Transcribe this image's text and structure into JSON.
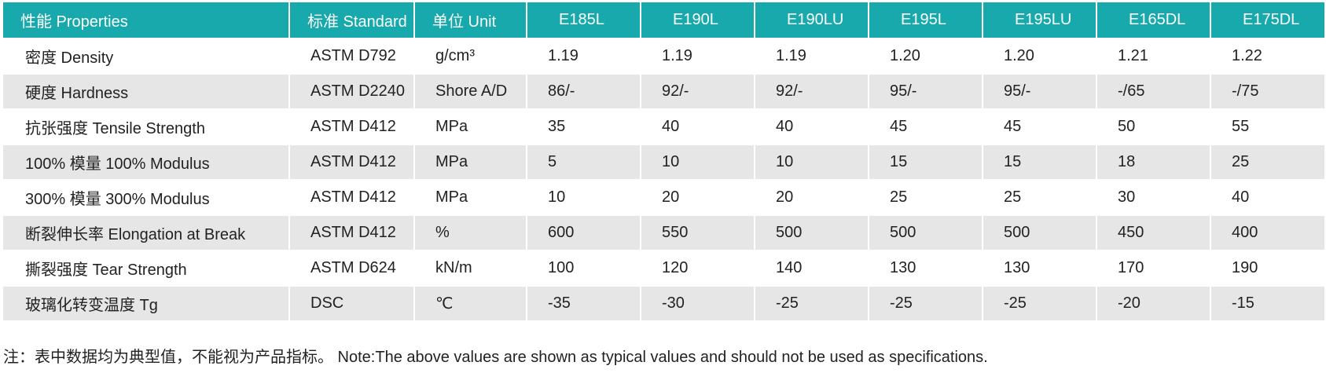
{
  "table": {
    "header": [
      "性能 Properties",
      "标准 Standard",
      "单位 Unit",
      "E185L",
      "E190L",
      "E190LU",
      "E195L",
      "E195LU",
      "E165DL",
      "E175DL"
    ],
    "rows": [
      [
        "密度 Density",
        "ASTM D792",
        "g/cm³",
        "1.19",
        "1.19",
        "1.19",
        "1.20",
        "1.20",
        "1.21",
        "1.22"
      ],
      [
        "硬度 Hardness",
        "ASTM D2240",
        "Shore A/D",
        "86/-",
        "92/-",
        "92/-",
        "95/-",
        "95/-",
        "-/65",
        "-/75"
      ],
      [
        "抗张强度 Tensile Strength",
        "ASTM D412",
        "MPa",
        "35",
        "40",
        "40",
        "45",
        "45",
        "50",
        "55"
      ],
      [
        "100% 模量 100% Modulus",
        "ASTM D412",
        "MPa",
        "5",
        "10",
        "10",
        "15",
        "15",
        "18",
        "25"
      ],
      [
        "300% 模量 300% Modulus",
        "ASTM D412",
        "MPa",
        "10",
        "20",
        "20",
        "25",
        "25",
        "30",
        "40"
      ],
      [
        "断裂伸长率 Elongation at Break",
        "ASTM D412",
        "%",
        "600",
        "550",
        "500",
        "500",
        "500",
        "450",
        "400"
      ],
      [
        "撕裂强度 Tear Strength",
        "ASTM D624",
        "kN/m",
        "100",
        "120",
        "140",
        "130",
        "130",
        "170",
        "190"
      ],
      [
        "玻璃化转变温度 Tg",
        "DSC",
        "℃",
        "-35",
        "-30",
        "-25",
        "-25",
        "-25",
        "-20",
        "-15"
      ]
    ]
  },
  "note": "注：表中数据均为典型值，不能视为产品指标。 Note:The above values are shown as typical values and should not be used as specifications."
}
